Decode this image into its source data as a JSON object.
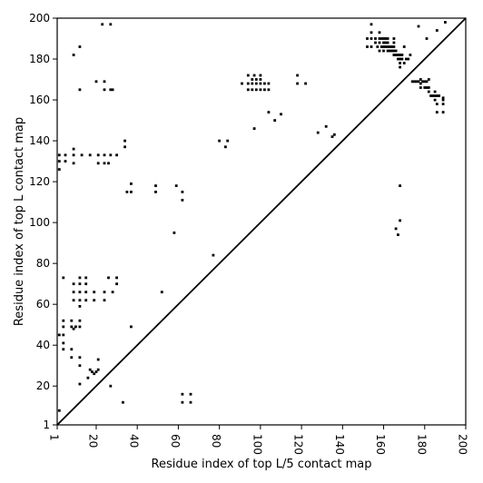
{
  "chart_data": {
    "type": "scatter",
    "xlabel": "Residue index of top L/5 contact map",
    "ylabel": "Residue index of top L contact map",
    "xlim": [
      1,
      200
    ],
    "ylim": [
      1,
      200
    ],
    "xticks": [
      1,
      20,
      40,
      60,
      80,
      100,
      120,
      140,
      160,
      180,
      200
    ],
    "yticks": [
      1,
      20,
      40,
      60,
      80,
      100,
      120,
      140,
      160,
      180,
      200
    ],
    "diagonal": true,
    "grid": false,
    "colors": {
      "marker": "#000000",
      "diagonal": "#000000",
      "frame": "#000000"
    },
    "series": [
      {
        "label_role": "upper triangle: top L/5 contacts",
        "points": [
          [
            152,
            186
          ],
          [
            152,
            190
          ],
          [
            154,
            186
          ],
          [
            154,
            190
          ],
          [
            154,
            193
          ],
          [
            154,
            197
          ],
          [
            156,
            188
          ],
          [
            156,
            190
          ],
          [
            157,
            186
          ],
          [
            158,
            184
          ],
          [
            158,
            188
          ],
          [
            158,
            190
          ],
          [
            158,
            193
          ],
          [
            159,
            186
          ],
          [
            159,
            190
          ],
          [
            160,
            184
          ],
          [
            160,
            186
          ],
          [
            160,
            188
          ],
          [
            160,
            190
          ],
          [
            161,
            186
          ],
          [
            161,
            188
          ],
          [
            161,
            190
          ],
          [
            162,
            184
          ],
          [
            162,
            186
          ],
          [
            162,
            188
          ],
          [
            162,
            190
          ],
          [
            163,
            184
          ],
          [
            163,
            186
          ],
          [
            164,
            184
          ],
          [
            164,
            186
          ],
          [
            165,
            182
          ],
          [
            165,
            184
          ],
          [
            165,
            186
          ],
          [
            165,
            188
          ],
          [
            165,
            190
          ],
          [
            166,
            182
          ],
          [
            166,
            184
          ],
          [
            167,
            180
          ],
          [
            167,
            182
          ],
          [
            168,
            176
          ],
          [
            168,
            178
          ],
          [
            168,
            180
          ],
          [
            168,
            182
          ],
          [
            169,
            180
          ],
          [
            169,
            182
          ],
          [
            170,
            178
          ],
          [
            170,
            186
          ],
          [
            171,
            180
          ],
          [
            172,
            180
          ],
          [
            173,
            182
          ],
          [
            174,
            169
          ],
          [
            175,
            169
          ],
          [
            176,
            169
          ],
          [
            177,
            169
          ],
          [
            177,
            196
          ],
          [
            178,
            166
          ],
          [
            178,
            168
          ],
          [
            178,
            170
          ],
          [
            179,
            169
          ],
          [
            180,
            166
          ],
          [
            180,
            169
          ],
          [
            181,
            166
          ],
          [
            181,
            169
          ],
          [
            181,
            190
          ],
          [
            182,
            164
          ],
          [
            182,
            166
          ],
          [
            182,
            170
          ],
          [
            183,
            162
          ],
          [
            184,
            162
          ],
          [
            185,
            160
          ],
          [
            185,
            162
          ],
          [
            185,
            164
          ],
          [
            186,
            158
          ],
          [
            186,
            162
          ],
          [
            186,
            194
          ],
          [
            186,
            154
          ],
          [
            187,
            162
          ],
          [
            189,
            158
          ],
          [
            189,
            160
          ],
          [
            189,
            161
          ],
          [
            189,
            154
          ],
          [
            190,
            198
          ],
          [
            94,
            165
          ],
          [
            94,
            168
          ],
          [
            94,
            172
          ],
          [
            96,
            165
          ],
          [
            96,
            168
          ],
          [
            96,
            170
          ],
          [
            97,
            172
          ],
          [
            98,
            165
          ],
          [
            98,
            168
          ],
          [
            98,
            170
          ],
          [
            100,
            165
          ],
          [
            100,
            168
          ],
          [
            100,
            170
          ],
          [
            100,
            172
          ],
          [
            102,
            165
          ],
          [
            102,
            168
          ],
          [
            104,
            165
          ],
          [
            104,
            168
          ],
          [
            91,
            168
          ],
          [
            118,
            168
          ],
          [
            118,
            172
          ],
          [
            122,
            168
          ],
          [
            104,
            154
          ],
          [
            107,
            150
          ],
          [
            110,
            153
          ],
          [
            97,
            146
          ],
          [
            128,
            144
          ],
          [
            132,
            147
          ],
          [
            135,
            142
          ],
          [
            136,
            143
          ],
          [
            80,
            140
          ],
          [
            83,
            137
          ],
          [
            84,
            140
          ],
          [
            2,
            126
          ],
          [
            2,
            130
          ],
          [
            2,
            133
          ],
          [
            5,
            130
          ],
          [
            5,
            133
          ],
          [
            9,
            129
          ],
          [
            9,
            133
          ],
          [
            9,
            136
          ],
          [
            13,
            133
          ],
          [
            17,
            133
          ],
          [
            21,
            129
          ],
          [
            21,
            133
          ],
          [
            24,
            129
          ],
          [
            24,
            133
          ],
          [
            26,
            129
          ],
          [
            27,
            133
          ],
          [
            30,
            133
          ],
          [
            34,
            137
          ],
          [
            34,
            140
          ],
          [
            20,
            169
          ],
          [
            24,
            165
          ],
          [
            24,
            169
          ],
          [
            27,
            165
          ],
          [
            28,
            165
          ],
          [
            23,
            197
          ],
          [
            27,
            197
          ],
          [
            9,
            182
          ],
          [
            12,
            186
          ],
          [
            12,
            165
          ],
          [
            35,
            115
          ],
          [
            37,
            115
          ],
          [
            37,
            119
          ],
          [
            49,
            115
          ],
          [
            49,
            118
          ],
          [
            59,
            118
          ],
          [
            62,
            111
          ],
          [
            62,
            115
          ],
          [
            58,
            95
          ],
          [
            166,
            97
          ],
          [
            167,
            94
          ],
          [
            168,
            101
          ],
          [
            168,
            118
          ],
          [
            77,
            84
          ],
          [
            52,
            66
          ]
        ]
      },
      {
        "label_role": "lower triangle: top L contacts",
        "points": [
          [
            4,
            73
          ],
          [
            9,
            62
          ],
          [
            9,
            66
          ],
          [
            9,
            70
          ],
          [
            12,
            59
          ],
          [
            12,
            62
          ],
          [
            12,
            66
          ],
          [
            12,
            70
          ],
          [
            12,
            73
          ],
          [
            15,
            62
          ],
          [
            15,
            66
          ],
          [
            15,
            70
          ],
          [
            15,
            73
          ],
          [
            19,
            62
          ],
          [
            19,
            66
          ],
          [
            24,
            62
          ],
          [
            24,
            66
          ],
          [
            26,
            73
          ],
          [
            28,
            66
          ],
          [
            30,
            70
          ],
          [
            30,
            73
          ],
          [
            4,
            49
          ],
          [
            4,
            52
          ],
          [
            8,
            49
          ],
          [
            8,
            52
          ],
          [
            9,
            48
          ],
          [
            10,
            49
          ],
          [
            12,
            49
          ],
          [
            12,
            52
          ],
          [
            2,
            45
          ],
          [
            4,
            41
          ],
          [
            4,
            45
          ],
          [
            4,
            38
          ],
          [
            8,
            38
          ],
          [
            8,
            34
          ],
          [
            12,
            34
          ],
          [
            12,
            30
          ],
          [
            17,
            28
          ],
          [
            18,
            27
          ],
          [
            20,
            27
          ],
          [
            21,
            28
          ],
          [
            19,
            26
          ],
          [
            16,
            24
          ],
          [
            21,
            33
          ],
          [
            12,
            21
          ],
          [
            27,
            20
          ],
          [
            33,
            12
          ],
          [
            37,
            49
          ],
          [
            2,
            8
          ],
          [
            62,
            12
          ],
          [
            62,
            16
          ],
          [
            66,
            12
          ],
          [
            66,
            16
          ]
        ]
      }
    ]
  }
}
